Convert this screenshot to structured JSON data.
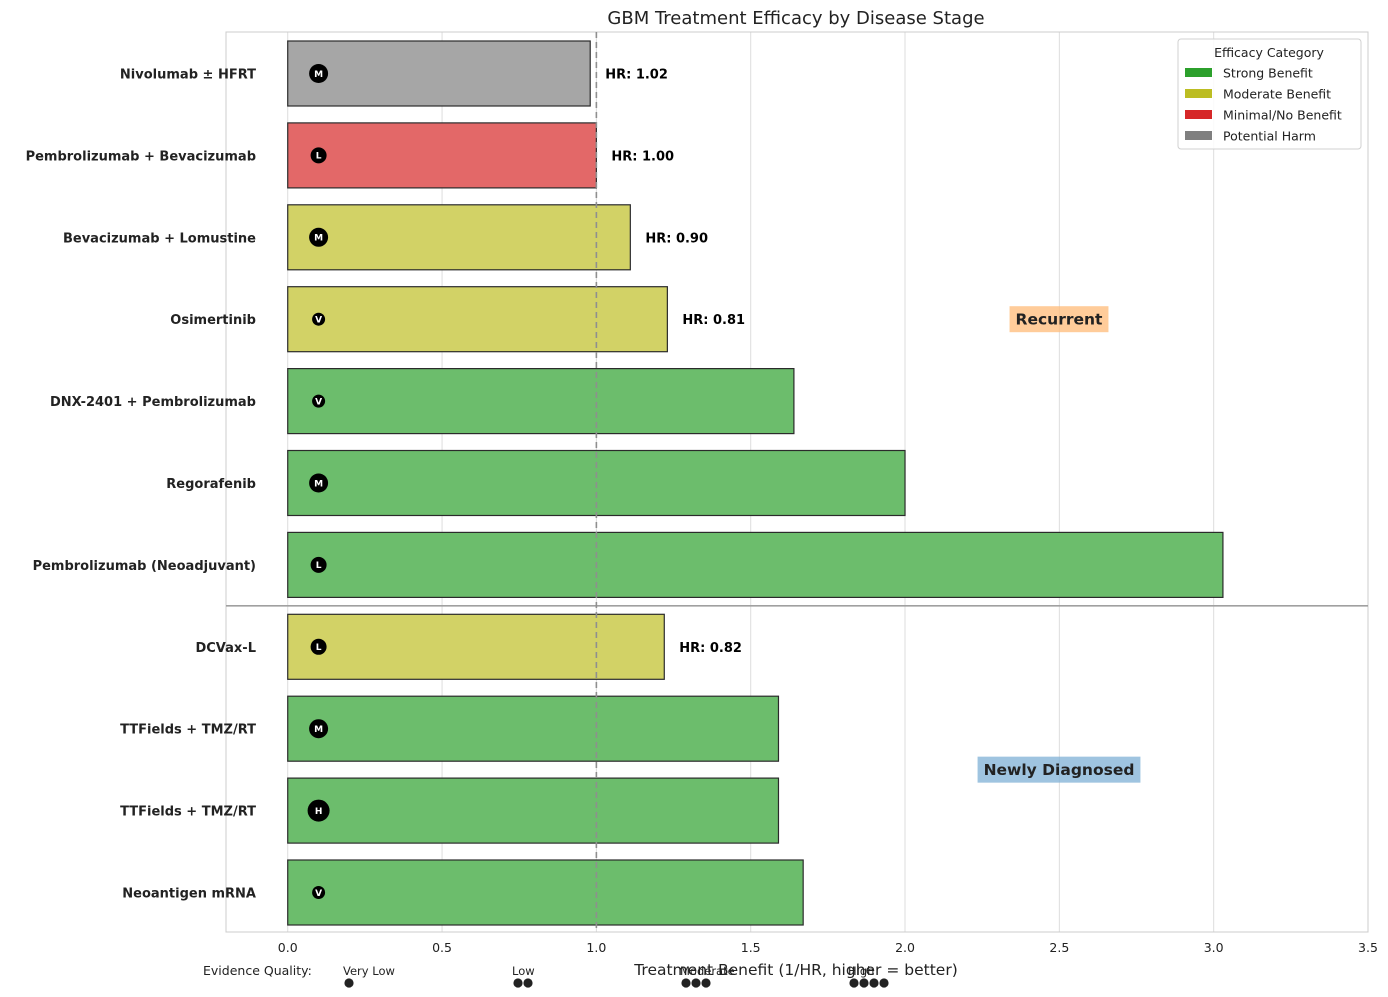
{
  "chart_data": {
    "type": "bar",
    "orientation": "horizontal",
    "title": "GBM Treatment Efficacy by Disease Stage",
    "xlabel": "Treatment Benefit (1/HR, higher = better)",
    "xlim": [
      -0.2,
      3.5
    ],
    "xticks": [
      "0.0",
      "0.5",
      "1.0",
      "1.5",
      "2.0",
      "2.5",
      "3.0",
      "3.5"
    ],
    "reference_line": 1.0,
    "grid": true,
    "legend_placement": "top-right",
    "legend": {
      "title": "Efficacy Category",
      "items": [
        {
          "label": "Strong Benefit",
          "color": "#2ca02c"
        },
        {
          "label": "Moderate Benefit",
          "color": "#bcbd22"
        },
        {
          "label": "Minimal/No Benefit",
          "color": "#d62728"
        },
        {
          "label": "Potential Harm",
          "color": "#7f7f7f"
        }
      ]
    },
    "groups": [
      {
        "label": "Recurrent",
        "color": "#ffbb78"
      },
      {
        "label": "Newly Diagnosed",
        "color": "#7fb0d6"
      }
    ],
    "bars": [
      {
        "label": "Nivolumab ± HFRT",
        "value": 0.98,
        "hr_label": "HR: 1.02",
        "category": "Potential Harm",
        "color": "#a6a6a6",
        "evidence": "M",
        "group": "Recurrent"
      },
      {
        "label": "Pembrolizumab + Bevacizumab",
        "value": 1.0,
        "hr_label": "HR: 1.00",
        "category": "Minimal/No Benefit",
        "color": "#e36868",
        "evidence": "L",
        "group": "Recurrent"
      },
      {
        "label": "Bevacizumab + Lomustine",
        "value": 1.11,
        "hr_label": "HR: 0.90",
        "category": "Moderate Benefit",
        "color": "#d2d266",
        "evidence": "M",
        "group": "Recurrent"
      },
      {
        "label": "Osimertinib",
        "value": 1.23,
        "hr_label": "HR: 0.81",
        "category": "Moderate Benefit",
        "color": "#d2d266",
        "evidence": "V",
        "group": "Recurrent"
      },
      {
        "label": "DNX-2401 + Pembrolizumab",
        "value": 1.64,
        "hr_label": "",
        "category": "Strong Benefit",
        "color": "#6cbd6c",
        "evidence": "V",
        "group": "Recurrent"
      },
      {
        "label": "Regorafenib",
        "value": 2.0,
        "hr_label": "",
        "category": "Strong Benefit",
        "color": "#6cbd6c",
        "evidence": "M",
        "group": "Recurrent"
      },
      {
        "label": "Pembrolizumab (Neoadjuvant)",
        "value": 3.03,
        "hr_label": "",
        "category": "Strong Benefit",
        "color": "#6cbd6c",
        "evidence": "L",
        "group": "Recurrent"
      },
      {
        "label": "DCVax-L",
        "value": 1.22,
        "hr_label": "HR: 0.82",
        "category": "Moderate Benefit",
        "color": "#d2d266",
        "evidence": "L",
        "group": "Newly Diagnosed"
      },
      {
        "label": "TTFields + TMZ/RT",
        "value": 1.59,
        "hr_label": "",
        "category": "Strong Benefit",
        "color": "#6cbd6c",
        "evidence": "M",
        "group": "Newly Diagnosed"
      },
      {
        "label": "TTFields + TMZ/RT",
        "value": 1.59,
        "hr_label": "",
        "category": "Strong Benefit",
        "color": "#6cbd6c",
        "evidence": "H",
        "group": "Newly Diagnosed"
      },
      {
        "label": "Neoantigen mRNA",
        "value": 1.67,
        "hr_label": "",
        "category": "Strong Benefit",
        "color": "#6cbd6c",
        "evidence": "V",
        "group": "Newly Diagnosed"
      }
    ],
    "evidence_key": {
      "label": "Evidence Quality:",
      "levels": [
        {
          "label": "Very Low",
          "code": "V",
          "dots": 1
        },
        {
          "label": "Low",
          "code": "L",
          "dots": 2
        },
        {
          "label": "Moderate",
          "code": "M",
          "dots": 3
        },
        {
          "label": "High",
          "code": "H",
          "dots": 4
        }
      ]
    }
  }
}
